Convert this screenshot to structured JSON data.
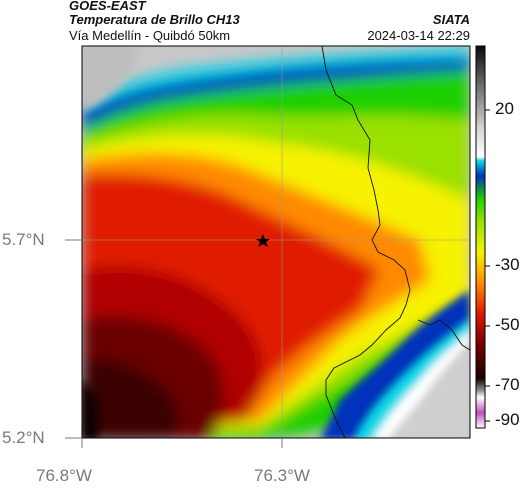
{
  "header": {
    "satellite": "GOES-EAST",
    "product": "Temperatura de Brillo CH13",
    "area": "Vía Medellín - Quibdó 50km",
    "organization": "SIATA",
    "timestamp": "2024-03-14 22:29"
  },
  "axes": {
    "x_ticks": [
      "76.8°W",
      "76.3°W"
    ],
    "y_ticks": [
      "5.7°N",
      "5.2°N"
    ]
  },
  "colorbar": {
    "tick_labels": [
      "20",
      "-30",
      "-50",
      "-70",
      "-90"
    ],
    "units_hint": "brightness temperature"
  },
  "map": {
    "marker": "star",
    "colors": {
      "warm_low": "#3a0000",
      "red": "#e01a00",
      "orange": "#ff8a00",
      "yellow": "#f6f200",
      "green": "#1fcf00",
      "blue": "#0033bb",
      "cyan": "#10d8e8",
      "gray": "#c8c8c8"
    }
  }
}
